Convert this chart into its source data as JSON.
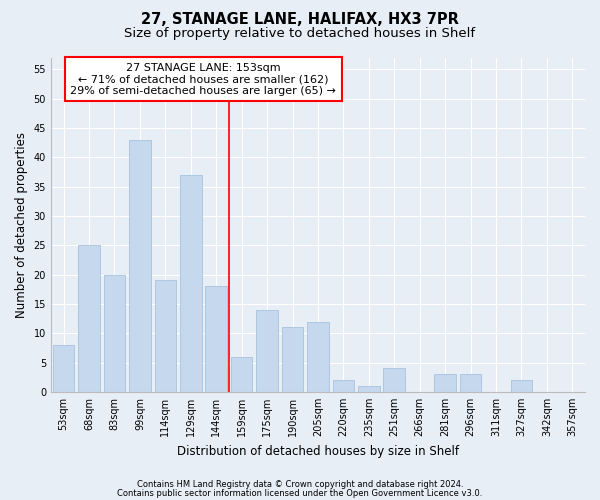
{
  "title": "27, STANAGE LANE, HALIFAX, HX3 7PR",
  "subtitle": "Size of property relative to detached houses in Shelf",
  "xlabel": "Distribution of detached houses by size in Shelf",
  "ylabel": "Number of detached properties",
  "categories": [
    "53sqm",
    "68sqm",
    "83sqm",
    "99sqm",
    "114sqm",
    "129sqm",
    "144sqm",
    "159sqm",
    "175sqm",
    "190sqm",
    "205sqm",
    "220sqm",
    "235sqm",
    "251sqm",
    "266sqm",
    "281sqm",
    "296sqm",
    "311sqm",
    "327sqm",
    "342sqm",
    "357sqm"
  ],
  "values": [
    8,
    25,
    20,
    43,
    19,
    37,
    18,
    6,
    14,
    11,
    12,
    2,
    1,
    4,
    0,
    3,
    3,
    0,
    2,
    0,
    0
  ],
  "bar_color": "#c5d8ed",
  "bar_edge_color": "#a8c4de",
  "annotation_text": "27 STANAGE LANE: 153sqm\n← 71% of detached houses are smaller (162)\n29% of semi-detached houses are larger (65) →",
  "vline_x_index": 7,
  "vline_color": "red",
  "annotation_box_facecolor": "white",
  "annotation_box_edgecolor": "red",
  "ylim": [
    0,
    57
  ],
  "yticks": [
    0,
    5,
    10,
    15,
    20,
    25,
    30,
    35,
    40,
    45,
    50,
    55
  ],
  "footer1": "Contains HM Land Registry data © Crown copyright and database right 2024.",
  "footer2": "Contains public sector information licensed under the Open Government Licence v3.0.",
  "bg_color": "#e8eef6",
  "plot_bg_color": "#e8eef6",
  "grid_color": "#ffffff",
  "title_fontsize": 10.5,
  "subtitle_fontsize": 9.5,
  "annot_fontsize": 8,
  "tick_fontsize": 7,
  "ylabel_fontsize": 8.5,
  "xlabel_fontsize": 8.5,
  "footer_fontsize": 6
}
